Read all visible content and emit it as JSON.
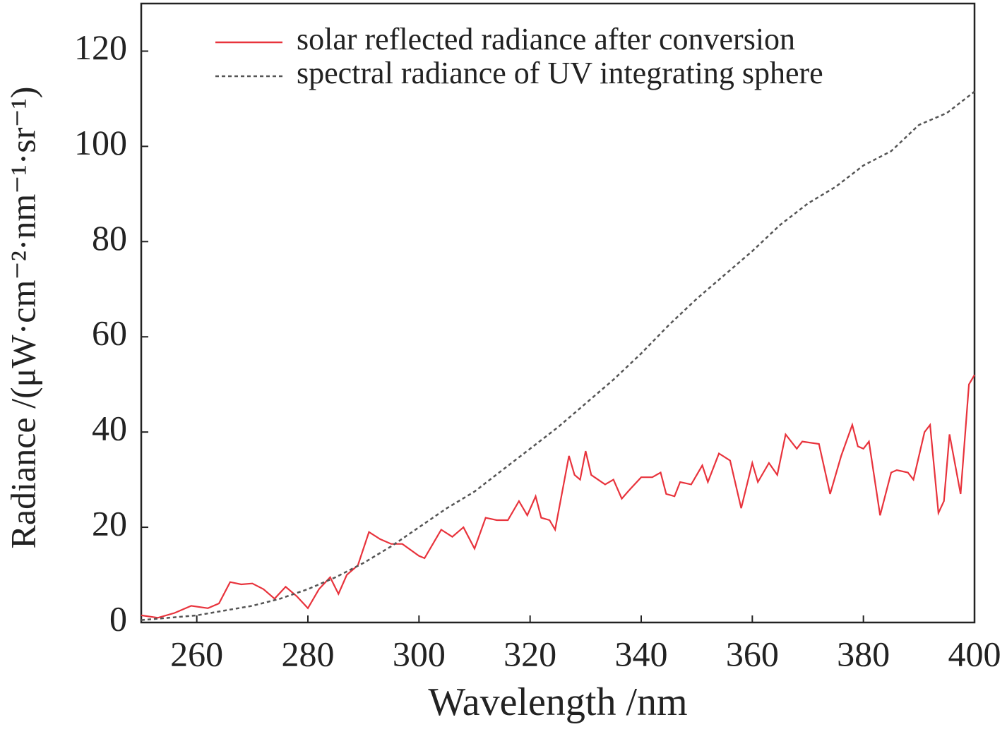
{
  "chart_data": {
    "type": "line",
    "xlabel": "Wavelength /nm",
    "ylabel": "Radiance /(μW·cm⁻²·nm⁻¹·sr⁻¹)",
    "xlim": [
      250,
      400
    ],
    "xticks": [
      260,
      280,
      300,
      320,
      340,
      360,
      380,
      400
    ],
    "ylim": [
      0,
      130
    ],
    "yticks": [
      0,
      20,
      40,
      60,
      80,
      100,
      120
    ],
    "legend": "upper left",
    "series": [
      {
        "name": "solar reflected radiance after conversion",
        "color": "#e8333c",
        "dash": "solid",
        "x": [
          250,
          253,
          256,
          259,
          262,
          264,
          266,
          268,
          270,
          272,
          274,
          276,
          278,
          280,
          282,
          284,
          285.5,
          287,
          289,
          291,
          293,
          295,
          297,
          300,
          301,
          304,
          306,
          308,
          310,
          312,
          314,
          316,
          318,
          319.5,
          321,
          322,
          323.5,
          324.5,
          327,
          328,
          329,
          330,
          331,
          333.5,
          335,
          336.5,
          338,
          340,
          342,
          343.5,
          344.5,
          346,
          347,
          349,
          351,
          352,
          354,
          356,
          358,
          360,
          361,
          363,
          364.5,
          366,
          368,
          369,
          372,
          374,
          376,
          378,
          379,
          380,
          381,
          383,
          385,
          386,
          388,
          389,
          391,
          392,
          393.5,
          394.5,
          395.5,
          397.5,
          399,
          400
        ],
        "values": [
          1.5,
          1,
          2,
          3.5,
          3,
          4,
          8.5,
          8,
          8.2,
          7,
          5,
          7.5,
          5.5,
          3,
          7,
          9.5,
          6,
          10,
          12,
          19,
          17.5,
          16.5,
          16.5,
          14,
          13.5,
          19.5,
          18,
          20,
          15.5,
          22,
          21.5,
          21.5,
          25.5,
          22.5,
          26.5,
          22,
          21.5,
          19.5,
          35,
          31,
          30,
          36,
          31,
          29,
          30,
          26,
          28,
          30.5,
          30.5,
          31.5,
          27,
          26.5,
          29.5,
          29,
          33,
          29.5,
          35.5,
          34,
          24,
          33.5,
          29.5,
          33.5,
          31,
          39.5,
          36.5,
          38,
          37.5,
          27,
          35,
          41.5,
          37,
          36.5,
          38,
          22.5,
          31.5,
          32,
          31.5,
          30,
          40,
          41.5,
          23,
          25.5,
          39.5,
          27,
          50,
          52
        ]
      },
      {
        "name": "spectral radiance of UV integrating sphere",
        "color": "#555555",
        "dash": "dashed",
        "x": [
          250,
          255,
          260,
          265,
          270,
          275,
          280,
          285,
          290,
          295,
          300,
          305,
          310,
          315,
          320,
          325,
          330,
          335,
          340,
          345,
          350,
          355,
          360,
          365,
          370,
          375,
          380,
          385,
          390,
          395,
          400
        ],
        "values": [
          0.5,
          1,
          1.5,
          2.5,
          3.5,
          5,
          7,
          9.5,
          12.5,
          16,
          20,
          24,
          27.5,
          32,
          36.5,
          41,
          46,
          51,
          56.5,
          62.5,
          68,
          73,
          78,
          83.5,
          88,
          91.5,
          96,
          99,
          104.5,
          107,
          111.5
        ]
      }
    ]
  }
}
